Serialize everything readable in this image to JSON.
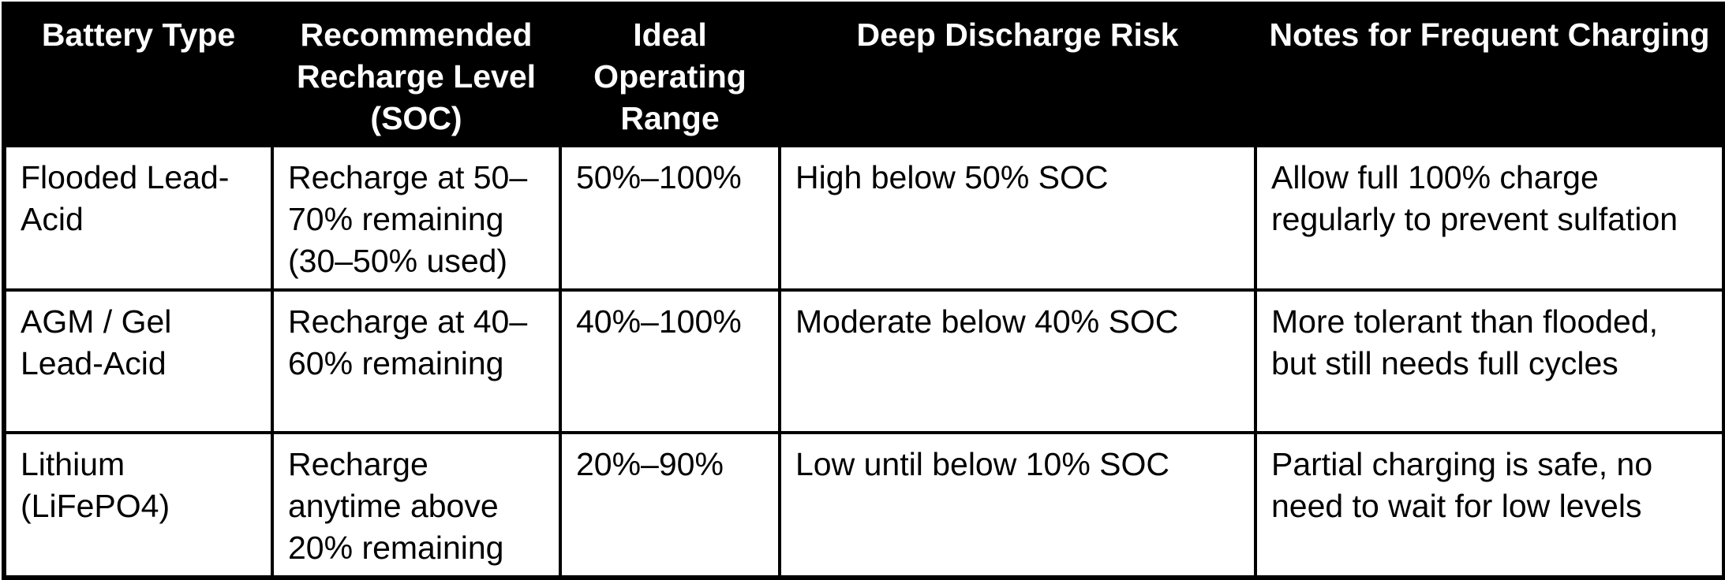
{
  "table": {
    "headers": [
      "Battery Type",
      "Recommended Recharge Level (SOC)",
      "Ideal Operating Range",
      "Deep Discharge Risk",
      "Notes for Frequent Charging"
    ],
    "rows": [
      [
        "Flooded Lead-Acid",
        "Recharge at 50–70% remaining (30–50% used)",
        "50%–100%",
        "High below 50% SOC",
        "Allow full 100% charge regularly to prevent sulfation"
      ],
      [
        "AGM / Gel Lead-Acid",
        "Recharge at 40–60% remaining",
        "40%–100%",
        "Moderate below 40% SOC",
        "More tolerant than flooded, but still needs full cycles"
      ],
      [
        "Lithium (LiFePO4)",
        "Recharge anytime above 20% remaining",
        "20%–90%",
        "Low until below 10% SOC",
        "Partial charging is safe, no need to wait for low levels"
      ]
    ]
  },
  "colors": {
    "header_background": "#000000",
    "header_text": "#ffffff",
    "body_background": "#ffffff",
    "body_text": "#000000",
    "border": "#000000"
  }
}
